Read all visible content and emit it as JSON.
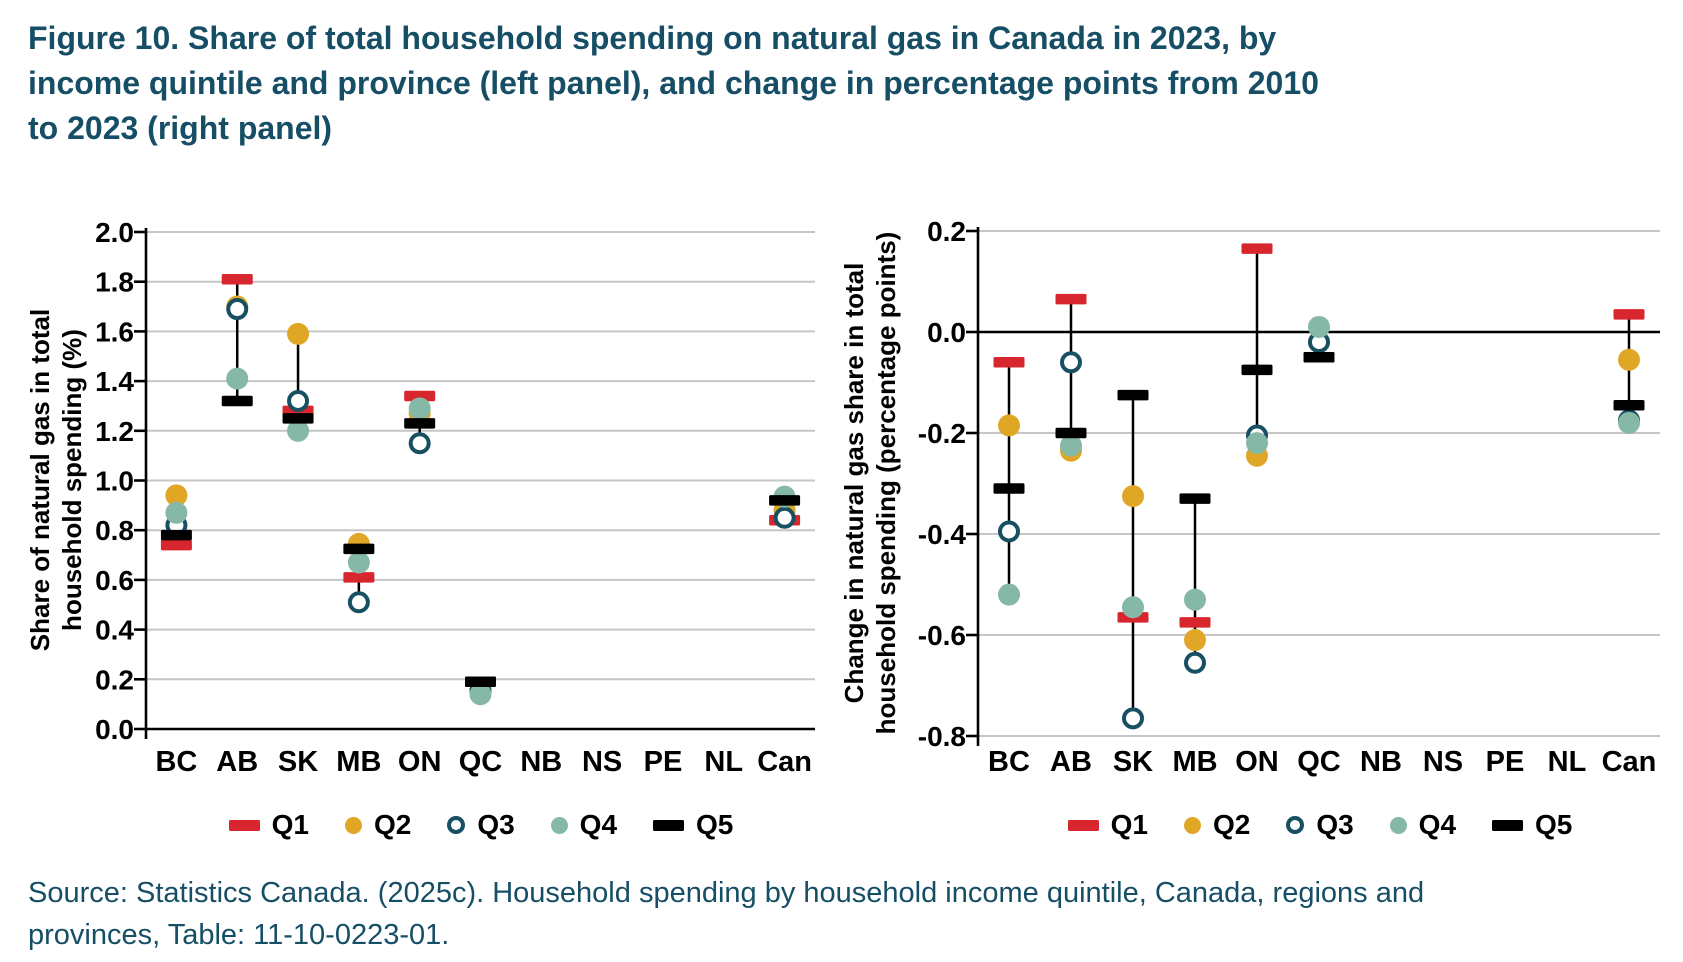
{
  "figure": {
    "title_lines": [
      "Figure 10. Share of total household spending on natural gas in Canada in 2023, by",
      "income quintile and province (left panel), and change in percentage points from 2010",
      "to 2023 (right panel)"
    ],
    "source_lines": [
      "Source: Statistics Canada. (2025c). Household spending by household income quintile, Canada, regions and",
      "provinces, Table: 11-10-0223-01."
    ]
  },
  "colors": {
    "title_text": "#164E66",
    "q1_red": "#D7262E",
    "q2_yellow": "#E0A626",
    "q3_outline": "#174F63",
    "q4_teal": "#85B8A6",
    "q5_black": "#000000",
    "gridline": "#C6C6C6",
    "axis": "#000000"
  },
  "chart_data": [
    {
      "type": "scatter",
      "panel": "left",
      "title": "",
      "xlabel": "",
      "ylabel": "Share of natural gas in total household spending (%)",
      "ylabel_lines": [
        "Share of natural gas in total",
        "household spending (%)"
      ],
      "categories": [
        "BC",
        "AB",
        "SK",
        "MB",
        "ON",
        "QC",
        "NB",
        "NS",
        "PE",
        "NL",
        "Can"
      ],
      "ylim": [
        0.0,
        2.0
      ],
      "ytick_step": 0.2,
      "grid": true,
      "legend_position": "bottom",
      "series": [
        {
          "name": "Q1",
          "marker": "bar",
          "color": "#D7262E",
          "values": [
            0.74,
            1.81,
            1.28,
            0.61,
            1.34,
            0.19,
            null,
            null,
            null,
            null,
            0.84
          ]
        },
        {
          "name": "Q2",
          "marker": "circle",
          "color": "#E0A626",
          "values": [
            0.94,
            1.7,
            1.59,
            0.745,
            1.27,
            0.155,
            null,
            null,
            null,
            null,
            0.88
          ]
        },
        {
          "name": "Q3",
          "marker": "open-circle",
          "color": "#174F63",
          "values": [
            0.82,
            1.69,
            1.32,
            0.51,
            1.15,
            0.155,
            null,
            null,
            null,
            null,
            0.85
          ]
        },
        {
          "name": "Q4",
          "marker": "circle",
          "color": "#85B8A6",
          "values": [
            0.87,
            1.41,
            1.2,
            0.67,
            1.29,
            0.14,
            null,
            null,
            null,
            null,
            0.935
          ]
        },
        {
          "name": "Q5",
          "marker": "bar",
          "color": "#000000",
          "values": [
            0.78,
            1.32,
            1.25,
            0.725,
            1.23,
            0.19,
            null,
            null,
            null,
            null,
            0.92
          ]
        }
      ]
    },
    {
      "type": "scatter",
      "panel": "right",
      "title": "",
      "xlabel": "",
      "ylabel": "Change in natural gas share in total household spending (percentage points)",
      "ylabel_lines": [
        "Change in natural gas share in total",
        "household spending (percentage points)"
      ],
      "categories": [
        "BC",
        "AB",
        "SK",
        "MB",
        "ON",
        "QC",
        "NB",
        "NS",
        "PE",
        "NL",
        "Can"
      ],
      "ylim": [
        -0.8,
        0.2
      ],
      "ytick_step": 0.2,
      "grid": true,
      "zero_line": true,
      "legend_position": "bottom",
      "series": [
        {
          "name": "Q1",
          "marker": "bar",
          "color": "#D7262E",
          "values": [
            -0.06,
            0.065,
            -0.565,
            -0.575,
            0.165,
            -0.05,
            null,
            null,
            null,
            null,
            0.035
          ]
        },
        {
          "name": "Q2",
          "marker": "circle",
          "color": "#E0A626",
          "values": [
            -0.185,
            -0.235,
            -0.325,
            -0.61,
            -0.245,
            -0.02,
            null,
            null,
            null,
            null,
            -0.055
          ]
        },
        {
          "name": "Q3",
          "marker": "open-circle",
          "color": "#174F63",
          "values": [
            -0.395,
            -0.06,
            -0.765,
            -0.655,
            -0.205,
            -0.02,
            null,
            null,
            null,
            null,
            -0.175
          ]
        },
        {
          "name": "Q4",
          "marker": "circle",
          "color": "#85B8A6",
          "values": [
            -0.52,
            -0.225,
            -0.545,
            -0.53,
            -0.22,
            0.01,
            null,
            null,
            null,
            null,
            -0.18
          ]
        },
        {
          "name": "Q5",
          "marker": "bar",
          "color": "#000000",
          "values": [
            -0.31,
            -0.2,
            -0.125,
            -0.33,
            -0.075,
            -0.05,
            null,
            null,
            null,
            null,
            -0.145
          ]
        }
      ]
    }
  ]
}
